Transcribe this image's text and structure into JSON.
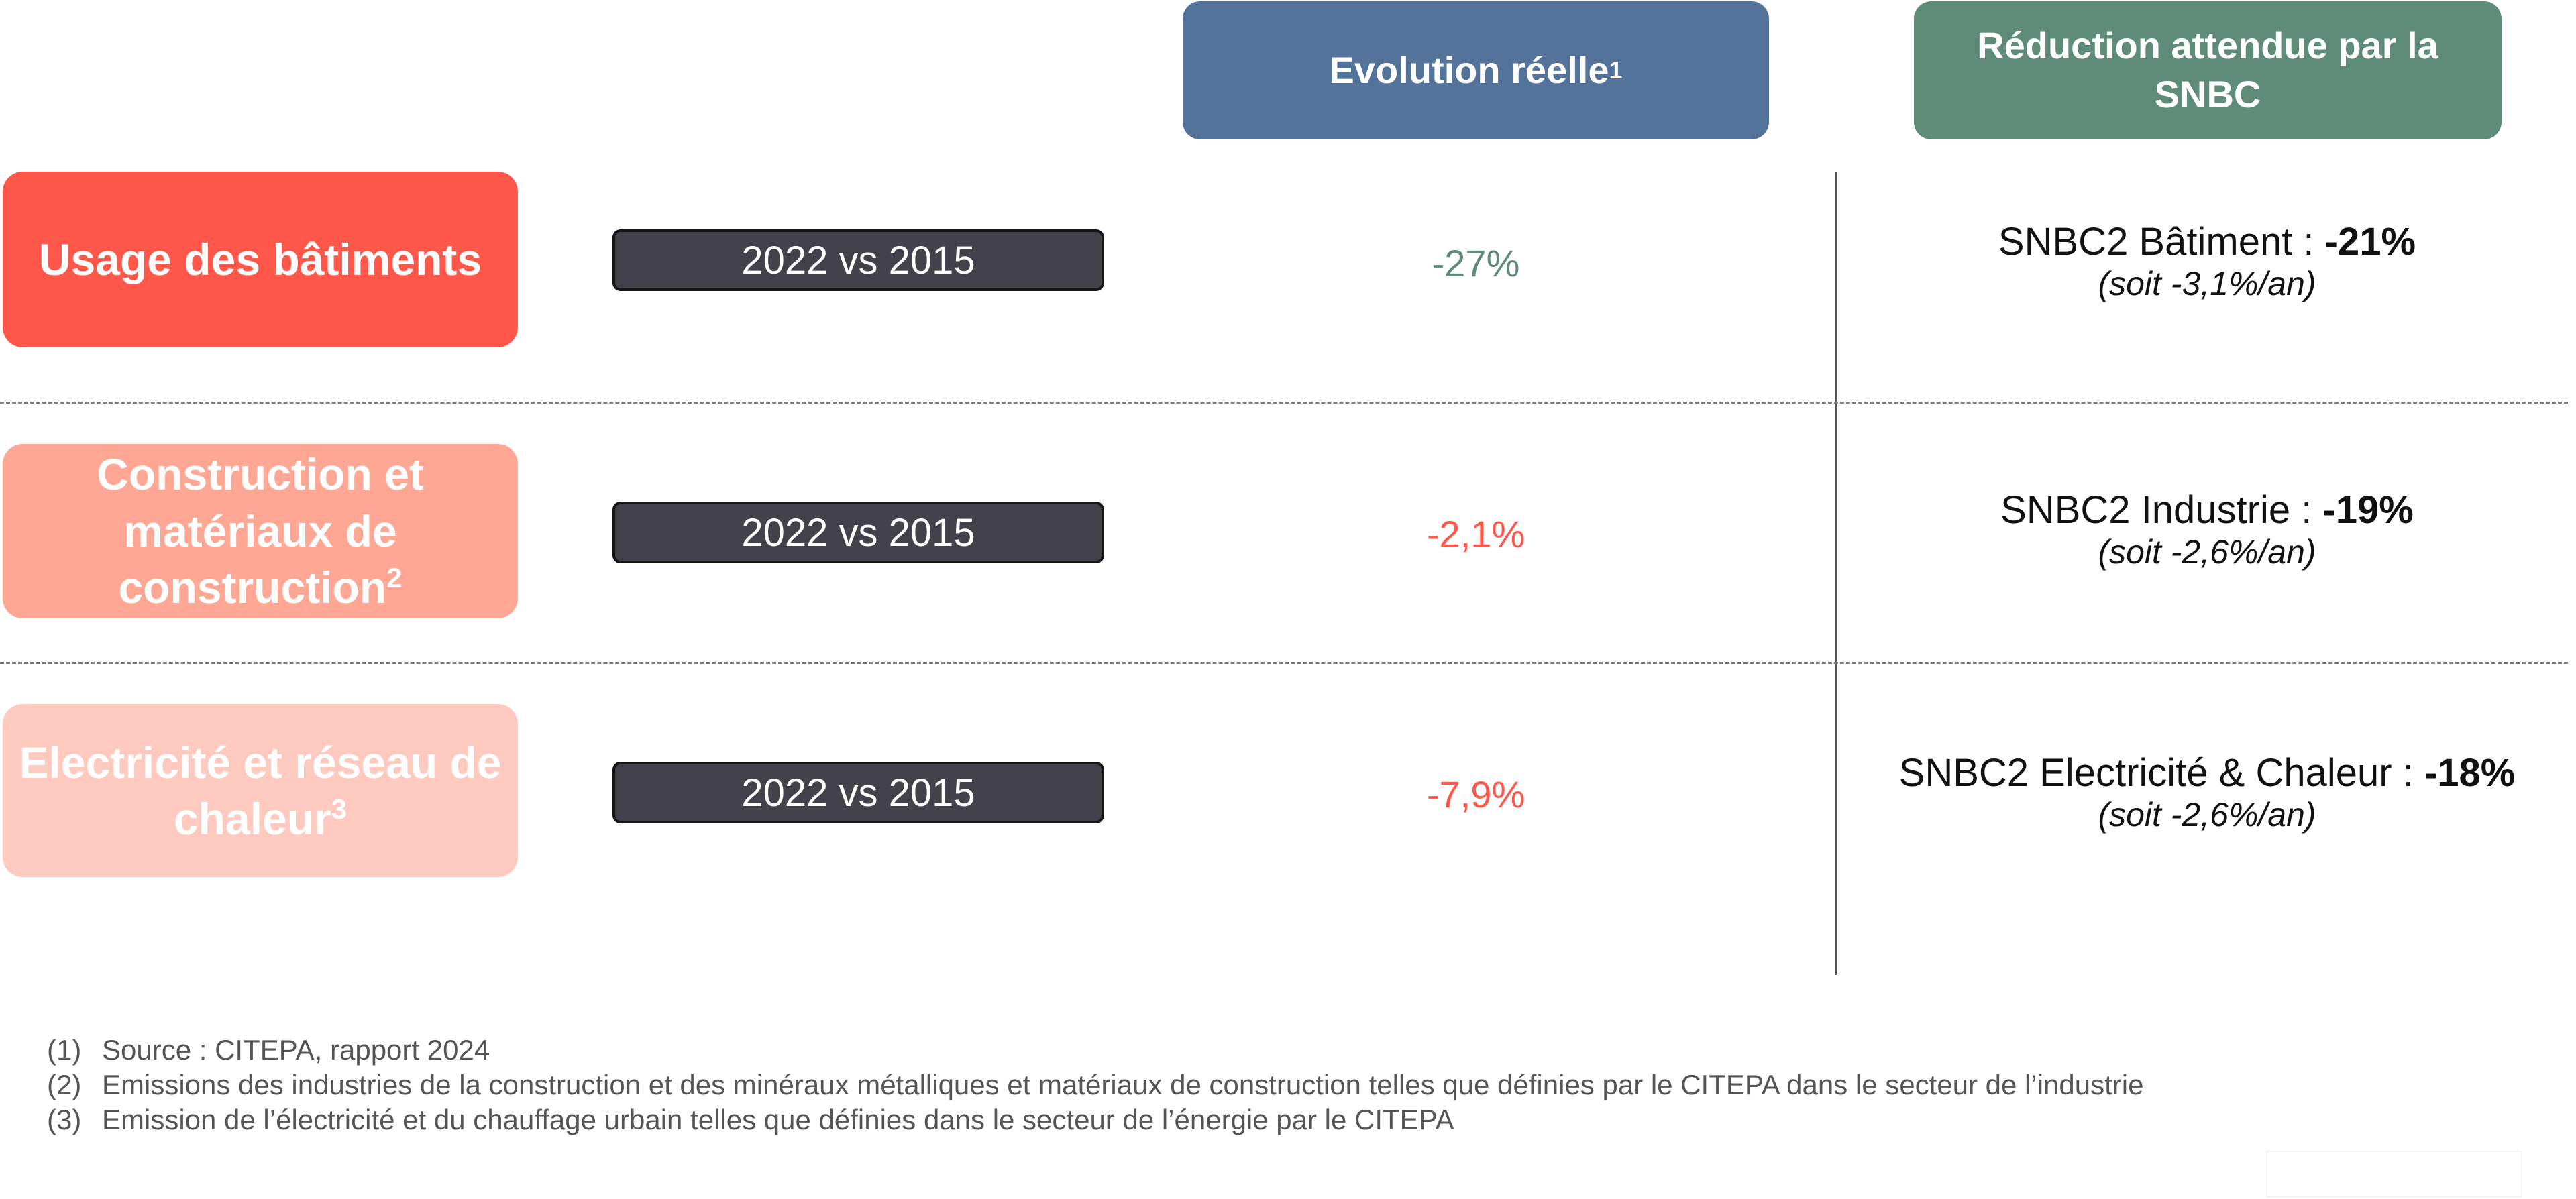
{
  "header": {
    "evolution": {
      "label": "Evolution réelle",
      "sup": "1"
    },
    "reduction": {
      "label": "Réduction attendue par la SNBC"
    }
  },
  "rows": [
    {
      "category": "Usage des bâtiments",
      "category_sup": "",
      "period": "2022 vs 2015",
      "evolution": "-27%",
      "snbc_label": "SNBC2 Bâtiment : ",
      "snbc_value": "-21%",
      "snbc_sub": "(soit -3,1%/an)"
    },
    {
      "category": "Construction et matériaux de construction",
      "category_sup": "2",
      "period": "2022 vs 2015",
      "evolution": "-2,1%",
      "snbc_label": "SNBC2 Industrie : ",
      "snbc_value": "-19%",
      "snbc_sub": "(soit -2,6%/an)"
    },
    {
      "category": "Electricité et réseau de chaleur",
      "category_sup": "3",
      "period": "2022 vs 2015",
      "evolution": "-7,9%",
      "snbc_label": "SNBC2 Electricité & Chaleur : ",
      "snbc_value": "-18%",
      "snbc_sub": "(soit -2,6%/an)"
    }
  ],
  "footnotes": [
    {
      "num": "(1)",
      "text": "Source : CITEPA, rapport 2024"
    },
    {
      "num": "(2)",
      "text": "Emissions des industries de la construction et des minéraux métalliques et matériaux de construction telles que définies par le CITEPA dans le secteur de l’industrie"
    },
    {
      "num": "(3)",
      "text": "Emission de l’électricité et du chauffage urbain telles que définies dans le secteur de l’énergie par le CITEPA"
    }
  ],
  "colors": {
    "header_evolution": "#54739a",
    "header_reduction": "#5f8b79",
    "category_1": "#ff574a",
    "category_2": "#fea795",
    "category_3": "#fec9be",
    "period_box": "#43424c",
    "positive_trend": "#5f8b79",
    "negative_trend": "#ff574a"
  }
}
